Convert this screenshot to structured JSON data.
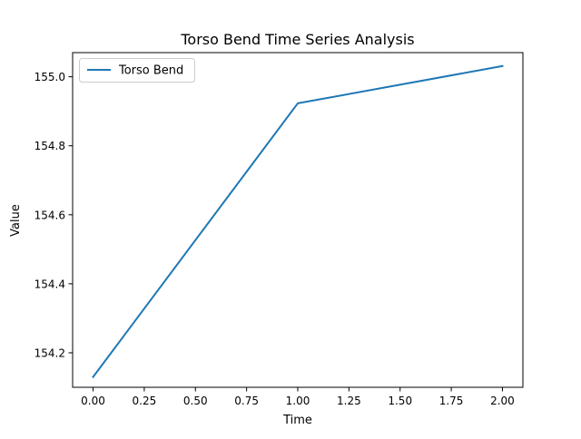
{
  "chart_data": {
    "type": "line",
    "title": "Torso Bend Time Series Analysis",
    "xlabel": "Time",
    "ylabel": "Value",
    "xlim": [
      -0.1,
      2.1
    ],
    "ylim": [
      154.1,
      155.07
    ],
    "xticks": [
      0.0,
      0.25,
      0.5,
      0.75,
      1.0,
      1.25,
      1.5,
      1.75,
      2.0
    ],
    "xtick_labels": [
      "0.00",
      "0.25",
      "0.50",
      "0.75",
      "1.00",
      "1.25",
      "1.50",
      "1.75",
      "2.00"
    ],
    "yticks": [
      154.2,
      154.4,
      154.6,
      154.8,
      155.0
    ],
    "ytick_labels": [
      "154.2",
      "154.4",
      "154.6",
      "154.8",
      "155.0"
    ],
    "grid": false,
    "legend_position": "top-left",
    "series": [
      {
        "name": "Torso Bend",
        "color": "#1f77b4",
        "x": [
          0,
          1,
          2
        ],
        "y": [
          154.13,
          154.923,
          155.031
        ]
      }
    ]
  }
}
